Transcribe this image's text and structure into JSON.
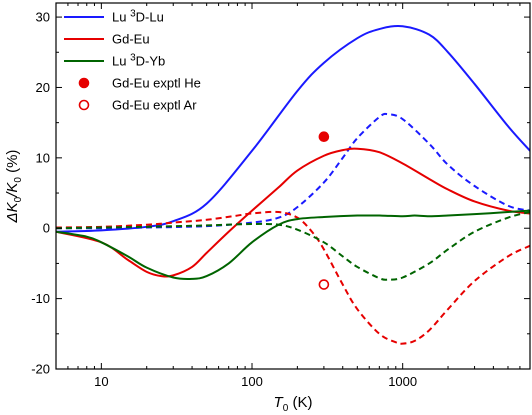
{
  "chart_data": {
    "type": "line",
    "xlabel": {
      "symbol": "T",
      "sub": "0",
      "unit": " (K)"
    },
    "ylabel": {
      "prefix": "ΔK",
      "sub1": "0",
      "mid": "/K",
      "sub2": "0",
      "unit": " (%)"
    },
    "xscale": "log",
    "xlim": [
      5,
      7000
    ],
    "ylim": [
      -20,
      32
    ],
    "x_ticks": [
      10,
      100,
      1000
    ],
    "x_tick_labels": [
      "10",
      "100",
      "1000"
    ],
    "y_ticks": [
      -20,
      -10,
      0,
      10,
      20,
      30
    ],
    "y_tick_labels": [
      "-20",
      "-10",
      "0",
      "10",
      "20",
      "30"
    ],
    "grid": false,
    "legend_position": "top-left",
    "legend": [
      {
        "label_main": "Lu ",
        "label_sup": "3",
        "label_rest": "D-Lu",
        "color": "#1a1aff",
        "kind": "line"
      },
      {
        "label_main": "Gd-Eu",
        "label_sup": "",
        "label_rest": "",
        "color": "#e60000",
        "kind": "line"
      },
      {
        "label_main": "Lu ",
        "label_sup": "3",
        "label_rest": "D-Yb",
        "color": "#006400",
        "kind": "line"
      },
      {
        "label_main": "Gd-Eu exptl He",
        "label_sup": "",
        "label_rest": "",
        "color": "#e60000",
        "kind": "filled-marker"
      },
      {
        "label_main": "Gd-Eu exptl Ar",
        "label_sup": "",
        "label_rest": "",
        "color": "#e60000",
        "kind": "open-marker"
      }
    ],
    "series": [
      {
        "group": "Lu 3D-Lu",
        "style": "solid",
        "color": "#1a1aff",
        "x": [
          5,
          10,
          20,
          30,
          50,
          100,
          200,
          300,
          500,
          700,
          1000,
          1500,
          2000,
          3000,
          5000,
          7000
        ],
        "y": [
          -0.5,
          -0.3,
          0.2,
          1.0,
          3.5,
          11.0,
          19.5,
          23.5,
          27.0,
          28.3,
          28.7,
          27.5,
          25.0,
          20.5,
          14.5,
          11.0
        ]
      },
      {
        "group": "Lu 3D-Lu",
        "style": "dashed",
        "color": "#1a1aff",
        "x": [
          5,
          10,
          20,
          50,
          100,
          150,
          200,
          300,
          400,
          500,
          700,
          800,
          1000,
          1500,
          2000,
          3000,
          5000,
          7000
        ],
        "y": [
          0.0,
          0.0,
          0.1,
          0.3,
          0.8,
          1.5,
          3.0,
          6.5,
          10.0,
          12.8,
          15.8,
          16.2,
          15.5,
          12.0,
          9.0,
          6.0,
          3.2,
          2.5
        ]
      },
      {
        "group": "Gd-Eu",
        "style": "solid",
        "color": "#e60000",
        "x": [
          5,
          10,
          15,
          20,
          25,
          30,
          40,
          50,
          70,
          100,
          150,
          200,
          300,
          400,
          500,
          700,
          1000,
          1500,
          2000,
          3000,
          5000,
          7000
        ],
        "y": [
          -0.5,
          -2.0,
          -4.5,
          -6.2,
          -6.8,
          -6.7,
          -5.5,
          -3.5,
          -0.5,
          2.5,
          5.8,
          8.2,
          10.3,
          11.1,
          11.3,
          10.8,
          9.2,
          7.0,
          5.5,
          3.8,
          2.5,
          2.1
        ]
      },
      {
        "group": "Gd-Eu",
        "style": "dashed",
        "color": "#e60000",
        "x": [
          5,
          10,
          20,
          30,
          50,
          80,
          100,
          150,
          200,
          250,
          300,
          400,
          500,
          700,
          900,
          1000,
          1200,
          1500,
          2000,
          3000,
          5000,
          7000
        ],
        "y": [
          0.1,
          0.2,
          0.5,
          0.8,
          1.2,
          1.8,
          2.1,
          2.3,
          1.5,
          -0.5,
          -3.0,
          -8.0,
          -11.5,
          -15.0,
          -16.2,
          -16.4,
          -16.0,
          -14.5,
          -11.5,
          -7.5,
          -4.0,
          -2.5
        ]
      },
      {
        "group": "Lu 3D-Yb",
        "style": "solid",
        "color": "#006400",
        "x": [
          5,
          8,
          10,
          15,
          20,
          30,
          40,
          50,
          70,
          100,
          150,
          200,
          300,
          500,
          700,
          1000,
          1200,
          1500,
          2000,
          3000,
          5000,
          7000
        ],
        "y": [
          -0.5,
          -1.2,
          -2.0,
          -4.0,
          -5.6,
          -7.0,
          -7.2,
          -6.8,
          -5.0,
          -2.0,
          0.5,
          1.3,
          1.6,
          1.8,
          1.8,
          1.7,
          1.8,
          1.7,
          1.8,
          2.0,
          2.3,
          2.5
        ]
      },
      {
        "group": "Lu 3D-Yb",
        "style": "dashed",
        "color": "#006400",
        "x": [
          5,
          10,
          20,
          50,
          100,
          150,
          200,
          300,
          400,
          500,
          700,
          800,
          1000,
          1500,
          2000,
          3000,
          5000,
          7000
        ],
        "y": [
          0.0,
          0.1,
          0.2,
          0.4,
          0.6,
          0.5,
          -0.2,
          -2.0,
          -4.0,
          -5.5,
          -7.1,
          -7.3,
          -7.0,
          -5.0,
          -3.0,
          -0.5,
          1.5,
          2.3
        ]
      }
    ],
    "points": [
      {
        "label": "Gd-Eu exptl He",
        "x": 300,
        "y": 13,
        "filled": true,
        "color": "#e60000"
      },
      {
        "label": "Gd-Eu exptl Ar",
        "x": 300,
        "y": -8,
        "filled": false,
        "color": "#e60000"
      }
    ]
  }
}
